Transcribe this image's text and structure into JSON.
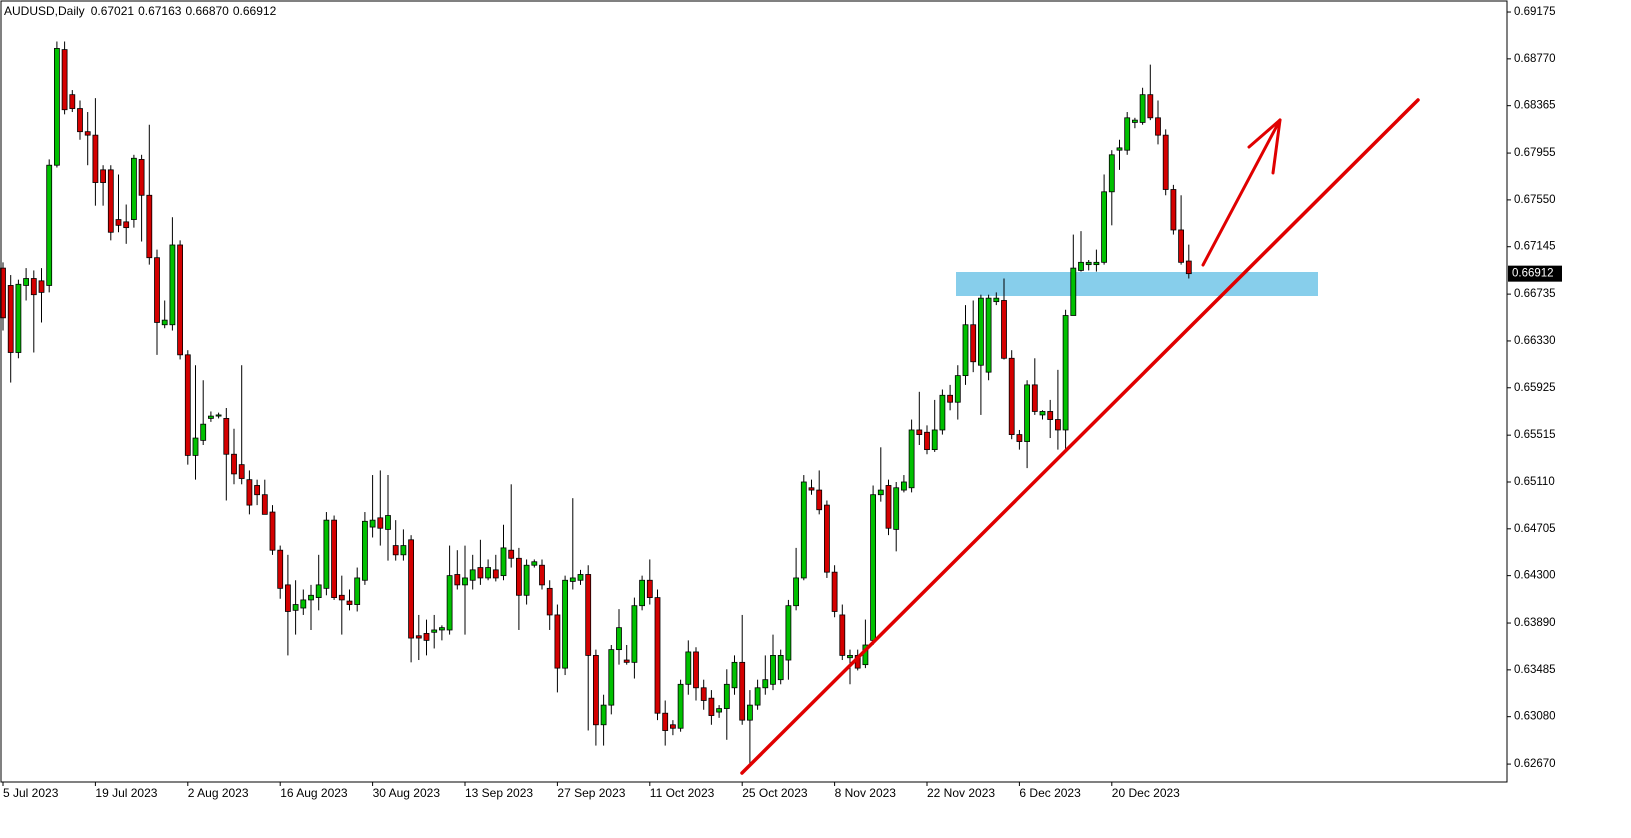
{
  "chart_data": {
    "type": "candlestick",
    "title": "AUDUSD,Daily",
    "last_ohlc": [
      0.67021,
      0.67163,
      {
        "value": 0.6687,
        "label": "0.66870"
      },
      0.66912
    ],
    "up_color": "#00c000",
    "down_color": "#d40000",
    "ylim": [
      0.62515,
      0.69279
    ],
    "yticks": [
      0.69175,
      {
        "value": 0.6877,
        "label": "0.68770"
      },
      0.68365,
      0.67955,
      {
        "value": 0.6755,
        "label": "0.67550"
      },
      0.67145,
      0.66735,
      {
        "value": 0.6633,
        "label": "0.66330"
      },
      0.65925,
      0.65515,
      {
        "value": 0.6511,
        "label": "0.65110"
      },
      0.64705,
      {
        "value": 0.643,
        "label": "0.64300"
      },
      {
        "value": 0.6389,
        "label": "0.63890"
      },
      0.63485,
      {
        "value": 0.6308,
        "label": "0.63080"
      },
      {
        "value": 0.6267,
        "label": "0.62670"
      }
    ],
    "categories": [
      "5 Jul 2023",
      null,
      null,
      null,
      null,
      null,
      null,
      null,
      null,
      null,
      null,
      null,
      "19 Jul 2023",
      null,
      null,
      null,
      null,
      null,
      null,
      null,
      null,
      null,
      null,
      null,
      "2 Aug 2023",
      null,
      null,
      null,
      null,
      null,
      null,
      null,
      null,
      null,
      null,
      null,
      "16 Aug 2023",
      null,
      null,
      null,
      null,
      null,
      null,
      null,
      null,
      null,
      null,
      null,
      "30 Aug 2023",
      null,
      null,
      null,
      null,
      null,
      null,
      null,
      null,
      null,
      null,
      null,
      "13 Sep 2023",
      null,
      null,
      null,
      null,
      null,
      null,
      null,
      null,
      null,
      null,
      null,
      "27 Sep 2023",
      null,
      null,
      null,
      null,
      null,
      null,
      null,
      null,
      null,
      null,
      null,
      "11 Oct 2023",
      null,
      null,
      null,
      null,
      null,
      null,
      null,
      null,
      null,
      null,
      null,
      "25 Oct 2023",
      null,
      null,
      null,
      null,
      null,
      null,
      null,
      null,
      null,
      null,
      null,
      "8 Nov 2023",
      null,
      null,
      null,
      null,
      null,
      null,
      null,
      null,
      null,
      null,
      null,
      "22 Nov 2023",
      null,
      null,
      null,
      null,
      null,
      null,
      null,
      null,
      null,
      null,
      null,
      "6 Dec 2023",
      null,
      null,
      null,
      null,
      null,
      null,
      null,
      null,
      null,
      null,
      null,
      "20 Dec 2023",
      null,
      null,
      null,
      null,
      null,
      null,
      null,
      null,
      null,
      null
    ],
    "open": [
      0.6696,
      0.6681,
      0.6623,
      0.6681,
      0.6687,
      0.6685,
      0.6681,
      0.6785,
      0.6885,
      0.6846,
      0.6834,
      0.6814,
      0.6811,
      0.6781,
      0.6781,
      0.6738,
      0.6736,
      0.6738,
      0.679,
      0.6759,
      0.6705,
      0.6647,
      0.6647,
      0.6716,
      0.6621,
      0.6534,
      0.6547,
      0.6566,
      0.6568,
      0.6566,
      0.6535,
      0.6526,
      0.6513,
      0.6508,
      0.65,
      0.6485,
      0.6452,
      0.6422,
      0.64,
      0.6402,
      0.6409,
      0.6411,
      0.6419,
      0.6478,
      0.6413,
      0.6408,
      0.6405,
      0.6426,
      0.6472,
      0.648,
      0.647,
      0.6456,
      0.6448,
      0.6461,
      0.6378,
      0.638,
      0.6381,
      0.6383,
      0.6383,
      0.6431,
      0.6422,
      0.6426,
      0.6437,
      0.6428,
      0.6435,
      0.643,
      0.6452,
      0.6445,
      0.6413,
      0.6439,
      0.6439,
      0.6419,
      0.6396,
      0.635,
      0.6425,
      0.6426,
      0.6431,
      0.6361,
      0.6301,
      0.6318,
      0.6366,
      0.6357,
      0.6355,
      0.6404,
      0.6426,
      0.6411,
      0.6311,
      0.6301,
      0.6298,
      0.6336,
      0.6364,
      0.6333,
      0.6324,
      0.6312,
      0.6315,
      0.6333,
      0.6355,
      0.6305,
      0.6318,
      0.6333,
      0.6336,
      0.634,
      0.6357,
      0.6404,
      0.6428,
      0.6506,
      0.6504,
      0.6491,
      0.6433,
      0.6396,
      0.6359,
      0.6361,
      0.6353,
      0.6374,
      0.65,
      0.6508,
      0.647,
      0.6504,
      0.6506,
      0.6556,
      0.6554,
      0.6539,
      0.6556,
      0.6586,
      0.658,
      0.6603,
      0.6647,
      0.6612,
      0.6606,
      0.6667,
      0.6668,
      0.6618,
      0.6552,
      0.6546,
      0.6595,
      0.6569,
      0.6572,
      0.6565,
      0.6556,
      0.6655,
      0.6694,
      0.6699,
      0.6699,
      0.6701,
      0.6762,
      0.6798,
      0.6798,
      0.6822,
      0.6822,
      0.6846,
      0.6826,
      0.6811,
      0.6764,
      0.6729,
      0.67021
    ],
    "high": [
      0.6701,
      0.669,
      0.6686,
      0.6696,
      0.6694,
      0.6696,
      0.679,
      0.6892,
      0.6892,
      0.685,
      0.6841,
      0.6831,
      0.6843,
      0.6785,
      0.6785,
      0.6777,
      0.6751,
      0.6794,
      0.6794,
      0.682,
      0.6712,
      0.6668,
      0.674,
      0.672,
      0.6625,
      0.6612,
      0.6599,
      0.6572,
      0.6571,
      0.6575,
      0.6557,
      0.6612,
      0.6521,
      0.6513,
      0.6513,
      0.6491,
      0.6456,
      0.6448,
      0.6426,
      0.6418,
      0.6422,
      0.6448,
      0.6485,
      0.6482,
      0.643,
      0.6418,
      0.6437,
      0.6485,
      0.6517,
      0.6521,
      0.6517,
      0.6478,
      0.647,
      0.6465,
      0.6396,
      0.6392,
      0.6396,
      0.6387,
      0.6456,
      0.6452,
      0.6456,
      0.6448,
      0.6461,
      0.6444,
      0.6448,
      0.6474,
      0.6509,
      0.6454,
      0.6444,
      0.6444,
      0.6444,
      0.6426,
      0.6405,
      0.643,
      0.6497,
      0.6435,
      0.6439,
      0.6366,
      0.6327,
      0.637,
      0.6401,
      0.637,
      0.6411,
      0.643,
      0.6444,
      0.6418,
      0.6322,
      0.6305,
      0.634,
      0.6374,
      0.6368,
      0.634,
      0.6331,
      0.6318,
      0.6349,
      0.6361,
      0.6396,
      0.6331,
      0.634,
      0.6361,
      0.6379,
      0.6366,
      0.6409,
      0.6454,
      0.6517,
      0.6513,
      0.6521,
      0.6495,
      0.6439,
      0.6405,
      0.6366,
      0.6366,
      0.6392,
      0.6508,
      0.6541,
      0.6513,
      0.6511,
      0.6517,
      0.6565,
      0.6589,
      0.656,
      0.6582,
      0.6591,
      0.6595,
      0.6612,
      0.6664,
      0.6668,
      0.6673,
      0.6673,
      0.6675,
      0.6687,
      0.6625,
      0.6556,
      0.6599,
      0.6618,
      0.6573,
      0.6582,
      0.6608,
      0.666,
      0.6725,
      0.6728,
      0.6703,
      0.6712,
      0.6777,
      0.6798,
      0.6807,
      0.6831,
      0.6826,
      0.6852,
      0.6872,
      0.6841,
      0.6816,
      0.6768,
      0.6759,
      0.67163
    ],
    "low": [
      0.6642,
      0.6597,
      0.6618,
      0.6668,
      0.6623,
      0.6649,
      0.6675,
      0.6783,
      0.6829,
      0.6831,
      0.6807,
      0.6785,
      0.675,
      0.675,
      0.672,
      0.6727,
      0.6717,
      0.6731,
      0.6719,
      0.6699,
      0.6621,
      0.6644,
      0.6642,
      0.6617,
      0.6526,
      0.6513,
      0.6543,
      0.6563,
      0.6566,
      0.6495,
      0.6509,
      0.6509,
      0.6483,
      0.6491,
      0.6483,
      0.6448,
      0.641,
      0.6361,
      0.6379,
      0.6396,
      0.6383,
      0.64,
      0.6413,
      0.6409,
      0.6379,
      0.64,
      0.6399,
      0.6422,
      0.6463,
      0.6456,
      0.6443,
      0.6443,
      0.6443,
      0.6355,
      0.6357,
      0.6361,
      0.6367,
      0.6374,
      0.6379,
      0.6418,
      0.6379,
      0.6418,
      0.6422,
      0.6426,
      0.6425,
      0.6426,
      0.6437,
      0.6383,
      0.6405,
      0.6437,
      0.6418,
      0.6383,
      0.6329,
      0.6344,
      0.6418,
      0.6422,
      0.6296,
      0.6283,
      0.6283,
      0.631,
      0.6353,
      0.6353,
      0.6341,
      0.64,
      0.6405,
      0.6305,
      0.6283,
      0.6292,
      0.6295,
      0.6327,
      0.6322,
      0.6314,
      0.6301,
      0.6307,
      0.6288,
      0.6327,
      0.6301,
      0.6266,
      0.6314,
      0.6327,
      0.6331,
      0.6336,
      0.634,
      0.64,
      0.6426,
      0.65,
      0.6483,
      0.6428,
      0.6394,
      0.6357,
      0.6336,
      0.6348,
      0.635,
      0.637,
      0.6494,
      0.6465,
      0.6451,
      0.6502,
      0.6502,
      0.6543,
      0.6535,
      0.6537,
      0.6552,
      0.6573,
      0.6565,
      0.6595,
      0.6606,
      0.6569,
      0.6599,
      0.6664,
      0.6617,
      0.6548,
      0.6539,
      0.6523,
      0.6569,
      0.6565,
      0.6549,
      0.6539,
      0.6539,
      0.6655,
      0.6693,
      0.6694,
      0.6693,
      0.6699,
      0.6733,
      0.6781,
      0.6794,
      0.6817,
      0.682,
      0.6824,
      0.6803,
      0.6759,
      0.6725,
      0.6699,
      0.6687
    ],
    "close": [
      0.6653,
      0.6623,
      0.6682,
      0.6687,
      0.6673,
      0.6675,
      0.6785,
      0.6886,
      0.6833,
      0.6834,
      0.6814,
      0.6811,
      0.677,
      0.677,
      0.6727,
      0.6733,
      0.6731,
      0.6791,
      0.6759,
      0.6705,
      0.6649,
      0.6651,
      0.6716,
      0.6621,
      0.6534,
      0.6549,
      0.6561,
      0.6568,
      0.6569,
      0.6535,
      0.6518,
      0.6514,
      0.6491,
      0.65,
      0.6483,
      0.6452,
      0.6419,
      0.6399,
      0.6405,
      0.6409,
      0.6413,
      0.6422,
      0.6478,
      0.6411,
      0.6409,
      0.6405,
      0.6428,
      0.6477,
      0.6478,
      0.6471,
      0.6482,
      0.6448,
      0.6456,
      0.6376,
      0.6376,
      0.6374,
      0.6383,
      0.6385,
      0.643,
      0.6422,
      0.6428,
      0.6435,
      0.6428,
      0.6437,
      0.6428,
      0.6454,
      0.6445,
      0.6413,
      0.6439,
      0.6442,
      0.6422,
      0.6396,
      0.635,
      0.6426,
      0.6428,
      0.6431,
      0.6361,
      0.6301,
      0.6318,
      0.6366,
      0.6385,
      0.6355,
      0.6404,
      0.6426,
      0.6411,
      0.6311,
      0.6296,
      0.6298,
      0.6336,
      0.6364,
      0.6333,
      0.6322,
      0.6309,
      0.6315,
      0.6336,
      0.6355,
      0.6305,
      0.6318,
      0.6333,
      0.634,
      0.6361,
      0.6361,
      0.6404,
      0.6428,
      0.6511,
      0.6504,
      0.6487,
      0.6433,
      0.6399,
      0.6361,
      0.6361,
      0.635,
      0.637,
      0.65,
      0.6504,
      0.6471,
      0.6506,
      0.6511,
      0.6556,
      0.6552,
      0.6539,
      0.6556,
      0.6586,
      0.658,
      0.6603,
      0.6647,
      0.6615,
      0.667,
      0.667,
      0.667,
      0.6618,
      0.6552,
      0.6546,
      0.6595,
      0.6572,
      0.6572,
      0.6565,
      0.6556,
      0.6655,
      0.6696,
      0.6701,
      0.6701,
      0.6701,
      0.6762,
      0.6794,
      0.68,
      0.6826,
      0.6824,
      0.6846,
      0.6826,
      0.6811,
      0.6764,
      0.6729,
      0.6701,
      0.66912
    ]
  }
}
